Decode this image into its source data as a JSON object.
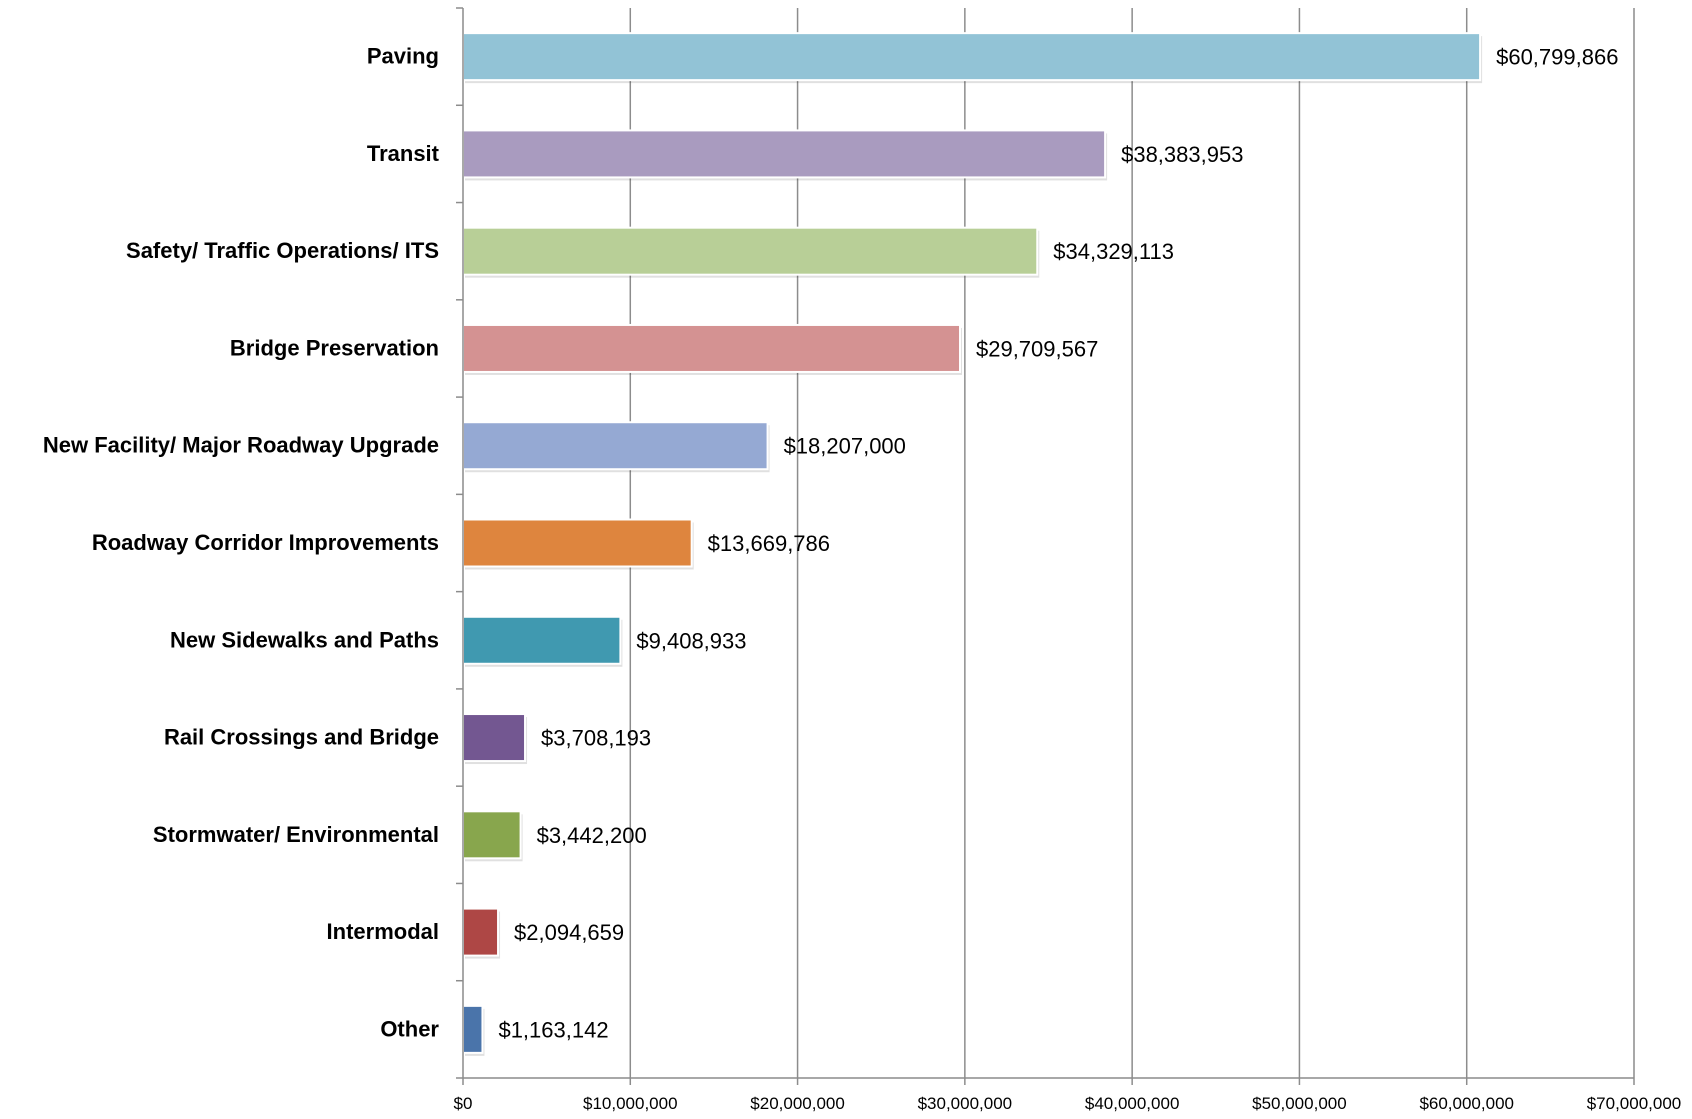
{
  "chart_data": {
    "type": "bar",
    "orientation": "horizontal",
    "title": "",
    "xlabel": "",
    "ylabel": "",
    "xlim": [
      0,
      70000000
    ],
    "grid": true,
    "legend": "none",
    "x_ticks": [
      "$0",
      "$10,000,000",
      "$20,000,000",
      "$30,000,000",
      "$40,000,000",
      "$50,000,000",
      "$60,000,000",
      "$70,000,000"
    ],
    "categories": [
      "Paving",
      "Transit",
      "Safety/ Traffic Operations/ ITS",
      "Bridge Preservation",
      "New Facility/ Major Roadway Upgrade",
      "Roadway Corridor Improvements",
      "New Sidewalks and Paths",
      "Rail Crossings and Bridge",
      "Stormwater/ Environmental",
      "Intermodal",
      "Other"
    ],
    "values": [
      60799866,
      38383953,
      34329113,
      29709567,
      18207000,
      13669786,
      9408933,
      3708193,
      3442200,
      2094659,
      1163142
    ],
    "value_labels": [
      "$60,799,866",
      "$38,383,953",
      "$34,329,113",
      "$29,709,567",
      "$18,207,000",
      "$13,669,786",
      "$9,408,933",
      "$3,708,193",
      "$3,442,200",
      "$2,094,659",
      "$1,163,142"
    ],
    "colors": [
      "#92c3d6",
      "#a99bbf",
      "#b8cf97",
      "#d49292",
      "#95a9d3",
      "#de853e",
      "#4099b0",
      "#735791",
      "#88a64d",
      "#ae4745",
      "#4a74aa"
    ]
  }
}
